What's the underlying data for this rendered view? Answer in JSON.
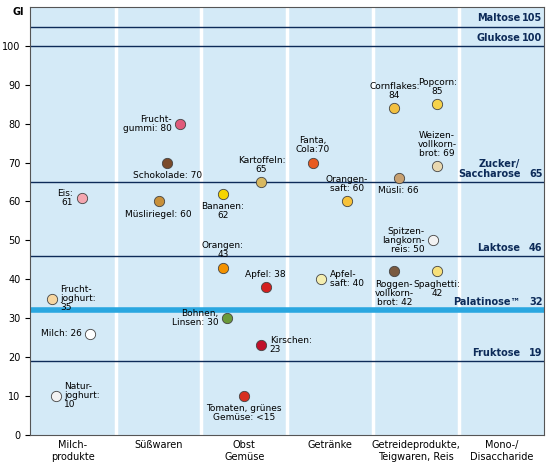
{
  "chart_data": {
    "type": "scatter",
    "y_label": "GI",
    "categories": [
      "Milch-\nprodukte",
      "Süßwaren",
      "Obst\nGemüse",
      "Getränke",
      "Getreideprodukte,\nTeigwaren, Reis",
      "Mono-/\nDisaccharide"
    ],
    "ylim": [
      0,
      110
    ],
    "yticks": [
      0,
      10,
      20,
      30,
      40,
      50,
      60,
      70,
      80,
      90,
      100
    ],
    "grid": false,
    "tick_labels": true,
    "items": [
      {
        "category": "Milch-\nprodukte",
        "label": "Eis:\n61",
        "value": 61,
        "color": "#f4a6b0"
      },
      {
        "category": "Milch-\nprodukte",
        "label": "Frucht-\njoghurt:\n35",
        "value": 35,
        "color": "#f7d6a0"
      },
      {
        "category": "Milch-\nprodukte",
        "label": "Milch: 26",
        "value": 26,
        "color": "#ffffff"
      },
      {
        "category": "Milch-\nprodukte",
        "label": "Natur-\njoghurt:\n10",
        "value": 10,
        "color": "#f2f2f2"
      },
      {
        "category": "Süßwaren",
        "label": "Frucht-\ngummi: 80",
        "value": 80,
        "color": "#e05a7a"
      },
      {
        "category": "Süßwaren",
        "label": "Schokolade: 70",
        "value": 70,
        "color": "#7a4a2a"
      },
      {
        "category": "Süßwaren",
        "label": "Müsliriegel: 60",
        "value": 60,
        "color": "#c8903a"
      },
      {
        "category": "Obst\nGemüse",
        "label": "Kartoffeln:\n65",
        "value": 65,
        "color": "#d8b860"
      },
      {
        "category": "Obst\nGemüse",
        "label": "Bananen:\n62",
        "value": 62,
        "color": "#f5d400"
      },
      {
        "category": "Obst\nGemüse",
        "label": "Orangen:\n43",
        "value": 43,
        "color": "#f39200"
      },
      {
        "category": "Obst\nGemüse",
        "label": "Apfel: 38",
        "value": 38,
        "color": "#d42020"
      },
      {
        "category": "Obst\nGemüse",
        "label": "Bohnen,\nLinsen: 30",
        "value": 30,
        "color": "#6a9a3a"
      },
      {
        "category": "Obst\nGemüse",
        "label": "Kirschen:\n23",
        "value": 23,
        "color": "#c0102a"
      },
      {
        "category": "Obst\nGemüse",
        "label": "Tomaten, grünes\nGemüse: <15",
        "value": 10,
        "color": "#d83020"
      },
      {
        "category": "Getränke",
        "label": "Fanta,\nCola:70",
        "value": 70,
        "color": "#e85a20"
      },
      {
        "category": "Getränke",
        "label": "Orangen-\nsaft: 60",
        "value": 60,
        "color": "#f7c23a"
      },
      {
        "category": "Getränke",
        "label": "Apfel-\nsaft: 40",
        "value": 40,
        "color": "#f4eeb0"
      },
      {
        "category": "Getreideprodukte,\nTeigwaren, Reis",
        "label": "Cornflakes:\n84",
        "value": 84,
        "color": "#f2c040"
      },
      {
        "category": "Getreideprodukte,\nTeigwaren, Reis",
        "label": "Popcorn:\n85",
        "value": 85,
        "color": "#f6d24a"
      },
      {
        "category": "Getreideprodukte,\nTeigwaren, Reis",
        "label": "Weizen-\nvollkorn-\nbrot: 69",
        "value": 69,
        "color": "#e8d8b0"
      },
      {
        "category": "Getreideprodukte,\nTeigwaren, Reis",
        "label": "Müsli: 66",
        "value": 66,
        "color": "#c8a070"
      },
      {
        "category": "Getreideprodukte,\nTeigwaren, Reis",
        "label": "Spitzen-\nlangkorn-\nreis: 50",
        "value": 50,
        "color": "#f2f2f2"
      },
      {
        "category": "Getreideprodukte,\nTeigwaren, Reis",
        "label": "Spaghetti:\n42",
        "value": 42,
        "color": "#f7e07a"
      },
      {
        "category": "Getreideprodukte,\nTeigwaren, Reis",
        "label": "Roggen-\nvollkorn-\nbrot: 42",
        "value": 42,
        "color": "#7a5a40"
      }
    ],
    "reference_lines": [
      {
        "name": "Maltose",
        "value": 105,
        "color": "#0d2b59",
        "line_style": "solid"
      },
      {
        "name": "Glukose",
        "value": 100,
        "color": "#0d2b59",
        "line_style": "solid"
      },
      {
        "name": "Zucker/Saccharose",
        "value": 65,
        "color": "#0d2b59",
        "line_style": "solid"
      },
      {
        "name": "Laktose",
        "value": 46,
        "color": "#0d2b59",
        "line_style": "solid"
      },
      {
        "name": "Palatinose™",
        "value": 32,
        "color": "#2aa7e0",
        "line_style": "thick"
      },
      {
        "name": "Fruktose",
        "value": 19,
        "color": "#0d2b59",
        "line_style": "solid"
      }
    ]
  }
}
